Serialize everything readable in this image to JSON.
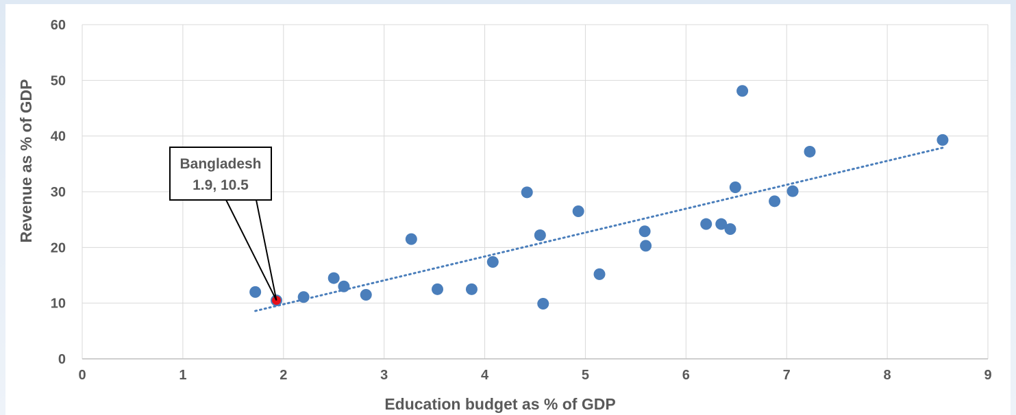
{
  "chart_data": {
    "type": "scatter",
    "xlabel": "Education budget as % of GDP",
    "ylabel": "Revenue as % of GDP",
    "xlim": [
      0,
      9
    ],
    "ylim": [
      0,
      60
    ],
    "xticks": [
      0,
      1,
      2,
      3,
      4,
      5,
      6,
      7,
      8,
      9
    ],
    "yticks": [
      0,
      10,
      20,
      30,
      40,
      50,
      60
    ],
    "grid": true,
    "legend": "none",
    "marker_color": "#4a7ebb",
    "highlight_color": "#e8101a",
    "trendline": {
      "style": "dotted linear",
      "color": "#4a7ebb",
      "x": [
        1.72,
        8.55
      ],
      "y": [
        8.6,
        37.9
      ]
    },
    "points": [
      {
        "x": 1.72,
        "y": 12.0
      },
      {
        "x": 1.93,
        "y": 10.5
      },
      {
        "x": 2.2,
        "y": 11.1
      },
      {
        "x": 2.5,
        "y": 14.5
      },
      {
        "x": 2.6,
        "y": 13.0
      },
      {
        "x": 2.82,
        "y": 11.5
      },
      {
        "x": 3.27,
        "y": 21.5
      },
      {
        "x": 3.53,
        "y": 12.5
      },
      {
        "x": 3.87,
        "y": 12.5
      },
      {
        "x": 4.08,
        "y": 17.4
      },
      {
        "x": 4.42,
        "y": 29.9
      },
      {
        "x": 4.55,
        "y": 22.2
      },
      {
        "x": 4.58,
        "y": 9.9
      },
      {
        "x": 4.93,
        "y": 26.5
      },
      {
        "x": 5.14,
        "y": 15.2
      },
      {
        "x": 5.59,
        "y": 22.9
      },
      {
        "x": 5.6,
        "y": 20.3
      },
      {
        "x": 6.2,
        "y": 24.2
      },
      {
        "x": 6.35,
        "y": 24.2
      },
      {
        "x": 6.44,
        "y": 23.3
      },
      {
        "x": 6.49,
        "y": 30.8
      },
      {
        "x": 6.56,
        "y": 48.1
      },
      {
        "x": 6.88,
        "y": 28.3
      },
      {
        "x": 7.06,
        "y": 30.1
      },
      {
        "x": 7.23,
        "y": 37.2
      },
      {
        "x": 8.55,
        "y": 39.3
      }
    ],
    "highlight": {
      "label": "Bangladesh",
      "value_label": "1.9, 10.5",
      "x": 1.93,
      "y": 10.5
    }
  }
}
